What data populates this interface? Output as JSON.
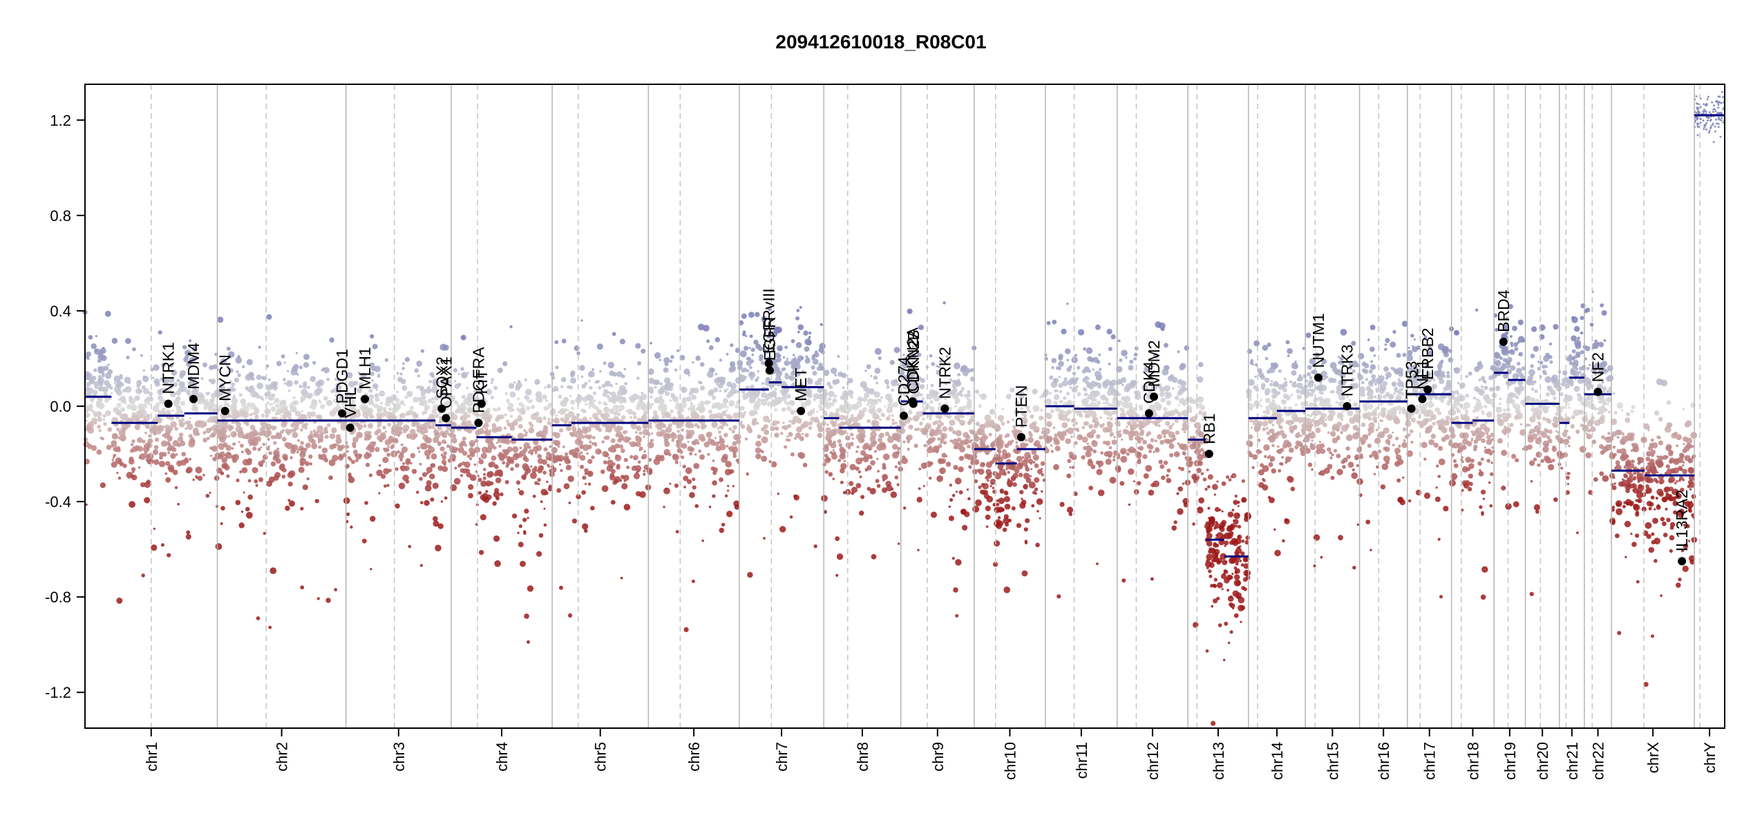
{
  "chart_data": {
    "type": "scatter",
    "title": "209412610018_R08C01",
    "ylim": [
      -1.35,
      1.35
    ],
    "yticks": [
      -1.2,
      -0.8,
      -0.4,
      0.0,
      0.4,
      0.8,
      1.2
    ],
    "ytick_labels": [
      "-1.2",
      "-0.8",
      "-0.4",
      "0.0",
      "0.4",
      "0.8",
      "1.2"
    ],
    "color_scale": {
      "high": "#7b7fb5",
      "mid": "#d9d9d9",
      "low": "#9c1a1a",
      "segment": "#000080",
      "gene": "#000000"
    },
    "chromosomes": [
      {
        "name": "chr1",
        "size": 249,
        "centromere": 0.5
      },
      {
        "name": "chr2",
        "size": 242,
        "centromere": 0.38
      },
      {
        "name": "chr3",
        "size": 198,
        "centromere": 0.46
      },
      {
        "name": "chr4",
        "size": 190,
        "centromere": 0.26
      },
      {
        "name": "chr5",
        "size": 181,
        "centromere": 0.27
      },
      {
        "name": "chr6",
        "size": 171,
        "centromere": 0.35
      },
      {
        "name": "chr7",
        "size": 159,
        "centromere": 0.38
      },
      {
        "name": "chr8",
        "size": 145,
        "centromere": 0.31
      },
      {
        "name": "chr9",
        "size": 138,
        "centromere": 0.36
      },
      {
        "name": "chr10",
        "size": 134,
        "centromere": 0.3
      },
      {
        "name": "chr11",
        "size": 135,
        "centromere": 0.4
      },
      {
        "name": "chr12",
        "size": 133,
        "centromere": 0.27
      },
      {
        "name": "chr13",
        "size": 114,
        "centromere": 0.15
      },
      {
        "name": "chr14",
        "size": 107,
        "centromere": 0.16
      },
      {
        "name": "chr15",
        "size": 102,
        "centromere": 0.18
      },
      {
        "name": "chr16",
        "size": 90,
        "centromere": 0.4
      },
      {
        "name": "chr17",
        "size": 83,
        "centromere": 0.29
      },
      {
        "name": "chr18",
        "size": 80,
        "centromere": 0.23
      },
      {
        "name": "chr19",
        "size": 59,
        "centromere": 0.45
      },
      {
        "name": "chr20",
        "size": 64,
        "centromere": 0.44
      },
      {
        "name": "chr21",
        "size": 47,
        "centromere": 0.26
      },
      {
        "name": "chr22",
        "size": 51,
        "centromere": 0.29
      },
      {
        "name": "chrX",
        "size": 156,
        "centromere": 0.39
      },
      {
        "name": "chrY",
        "size": 57,
        "centromere": 0.18
      }
    ],
    "segments": [
      {
        "chr": "chr1",
        "start": 0.0,
        "end": 0.2,
        "value": 0.04
      },
      {
        "chr": "chr1",
        "start": 0.2,
        "end": 0.55,
        "value": -0.07
      },
      {
        "chr": "chr1",
        "start": 0.55,
        "end": 0.75,
        "value": -0.04
      },
      {
        "chr": "chr1",
        "start": 0.75,
        "end": 1.0,
        "value": -0.03
      },
      {
        "chr": "chr2",
        "start": 0.0,
        "end": 1.0,
        "value": -0.06
      },
      {
        "chr": "chr3",
        "start": 0.0,
        "end": 0.85,
        "value": -0.06
      },
      {
        "chr": "chr3",
        "start": 0.85,
        "end": 1.0,
        "value": -0.08
      },
      {
        "chr": "chr4",
        "start": 0.0,
        "end": 0.25,
        "value": -0.09
      },
      {
        "chr": "chr4",
        "start": 0.25,
        "end": 0.6,
        "value": -0.13
      },
      {
        "chr": "chr4",
        "start": 0.6,
        "end": 1.0,
        "value": -0.14
      },
      {
        "chr": "chr5",
        "start": 0.0,
        "end": 0.2,
        "value": -0.08
      },
      {
        "chr": "chr5",
        "start": 0.2,
        "end": 1.0,
        "value": -0.07
      },
      {
        "chr": "chr6",
        "start": 0.0,
        "end": 1.0,
        "value": -0.06
      },
      {
        "chr": "chr7",
        "start": 0.0,
        "end": 0.35,
        "value": 0.07
      },
      {
        "chr": "chr7",
        "start": 0.35,
        "end": 0.5,
        "value": 0.1
      },
      {
        "chr": "chr7",
        "start": 0.5,
        "end": 1.0,
        "value": 0.08
      },
      {
        "chr": "chr8",
        "start": 0.0,
        "end": 0.2,
        "value": -0.05
      },
      {
        "chr": "chr8",
        "start": 0.2,
        "end": 1.0,
        "value": -0.09
      },
      {
        "chr": "chr9",
        "start": 0.0,
        "end": 0.3,
        "value": 0.02
      },
      {
        "chr": "chr9",
        "start": 0.3,
        "end": 1.0,
        "value": -0.03
      },
      {
        "chr": "chr10",
        "start": 0.0,
        "end": 0.3,
        "value": -0.18
      },
      {
        "chr": "chr10",
        "start": 0.3,
        "end": 0.6,
        "value": -0.24
      },
      {
        "chr": "chr10",
        "start": 0.6,
        "end": 1.0,
        "value": -0.18
      },
      {
        "chr": "chr11",
        "start": 0.0,
        "end": 0.4,
        "value": 0.0
      },
      {
        "chr": "chr11",
        "start": 0.4,
        "end": 1.0,
        "value": -0.01
      },
      {
        "chr": "chr12",
        "start": 0.0,
        "end": 1.0,
        "value": -0.05
      },
      {
        "chr": "chr13",
        "start": 0.0,
        "end": 0.3,
        "value": -0.14
      },
      {
        "chr": "chr13",
        "start": 0.3,
        "end": 0.6,
        "value": -0.56
      },
      {
        "chr": "chr13",
        "start": 0.6,
        "end": 1.0,
        "value": -0.63
      },
      {
        "chr": "chr14",
        "start": 0.0,
        "end": 0.5,
        "value": -0.05
      },
      {
        "chr": "chr14",
        "start": 0.5,
        "end": 1.0,
        "value": -0.02
      },
      {
        "chr": "chr15",
        "start": 0.0,
        "end": 1.0,
        "value": -0.01
      },
      {
        "chr": "chr16",
        "start": 0.0,
        "end": 1.0,
        "value": 0.02
      },
      {
        "chr": "chr17",
        "start": 0.0,
        "end": 1.0,
        "value": 0.05
      },
      {
        "chr": "chr18",
        "start": 0.0,
        "end": 0.5,
        "value": -0.07
      },
      {
        "chr": "chr18",
        "start": 0.5,
        "end": 1.0,
        "value": -0.06
      },
      {
        "chr": "chr19",
        "start": 0.0,
        "end": 0.45,
        "value": 0.14
      },
      {
        "chr": "chr19",
        "start": 0.45,
        "end": 1.0,
        "value": 0.11
      },
      {
        "chr": "chr20",
        "start": 0.0,
        "end": 1.0,
        "value": 0.01
      },
      {
        "chr": "chr21",
        "start": 0.0,
        "end": 0.4,
        "value": -0.07
      },
      {
        "chr": "chr21",
        "start": 0.4,
        "end": 1.0,
        "value": 0.12
      },
      {
        "chr": "chr22",
        "start": 0.0,
        "end": 1.0,
        "value": 0.05
      },
      {
        "chr": "chrX",
        "start": 0.0,
        "end": 0.4,
        "value": -0.27
      },
      {
        "chr": "chrX",
        "start": 0.4,
        "end": 1.0,
        "value": -0.29
      },
      {
        "chr": "chrY",
        "start": 0.0,
        "end": 1.0,
        "value": 1.22
      }
    ],
    "genes": [
      {
        "name": "NTRK1",
        "chr": "chr1",
        "pos": 0.63,
        "value": 0.01
      },
      {
        "name": "MDM4",
        "chr": "chr1",
        "pos": 0.82,
        "value": 0.03
      },
      {
        "name": "MYCN",
        "chr": "chr2",
        "pos": 0.06,
        "value": -0.02
      },
      {
        "name": "PDGD1",
        "chr": "chr2",
        "pos": 0.97,
        "value": -0.03
      },
      {
        "name": "VHL",
        "chr": "chr3",
        "pos": 0.04,
        "value": -0.09
      },
      {
        "name": "MLH1",
        "chr": "chr3",
        "pos": 0.18,
        "value": 0.03
      },
      {
        "name": "SOX2",
        "chr": "chr3",
        "pos": 0.91,
        "value": -0.01
      },
      {
        "name": "OPAX1",
        "chr": "chr3",
        "pos": 0.95,
        "value": -0.05
      },
      {
        "name": "PDGFRA",
        "chr": "chr4",
        "pos": 0.27,
        "value": -0.07
      },
      {
        "name": "KIT",
        "chr": "chr4",
        "pos": 0.3,
        "value": 0.01
      },
      {
        "name": "EGFRvIII",
        "chr": "chr7",
        "pos": 0.35,
        "value": 0.18
      },
      {
        "name": "EGFR",
        "chr": "chr7",
        "pos": 0.36,
        "value": 0.15
      },
      {
        "name": "MET",
        "chr": "chr7",
        "pos": 0.73,
        "value": -0.02
      },
      {
        "name": "CD274",
        "chr": "chr9",
        "pos": 0.04,
        "value": -0.04
      },
      {
        "name": "CDKN2A",
        "chr": "chr9",
        "pos": 0.16,
        "value": 0.02
      },
      {
        "name": "CDKN2B",
        "chr": "chr9",
        "pos": 0.17,
        "value": 0.01
      },
      {
        "name": "NTRK2",
        "chr": "chr9",
        "pos": 0.6,
        "value": -0.01
      },
      {
        "name": "PTEN",
        "chr": "chr10",
        "pos": 0.66,
        "value": -0.13
      },
      {
        "name": "CDK4",
        "chr": "chr12",
        "pos": 0.45,
        "value": -0.03
      },
      {
        "name": "MDM2",
        "chr": "chr12",
        "pos": 0.52,
        "value": 0.04
      },
      {
        "name": "RB1",
        "chr": "chr13",
        "pos": 0.35,
        "value": -0.2
      },
      {
        "name": "NUTM1",
        "chr": "chr15",
        "pos": 0.24,
        "value": 0.12
      },
      {
        "name": "NTRK3",
        "chr": "chr15",
        "pos": 0.77,
        "value": 0.0
      },
      {
        "name": "TP53",
        "chr": "chr17",
        "pos": 0.09,
        "value": -0.01
      },
      {
        "name": "NF1",
        "chr": "chr17",
        "pos": 0.34,
        "value": 0.03
      },
      {
        "name": "ERBB2",
        "chr": "chr17",
        "pos": 0.46,
        "value": 0.07
      },
      {
        "name": "BRD4",
        "chr": "chr19",
        "pos": 0.3,
        "value": 0.27
      },
      {
        "name": "NF2",
        "chr": "chr22",
        "pos": 0.5,
        "value": 0.06
      },
      {
        "name": "IL13RA2",
        "chr": "chrX",
        "pos": 0.85,
        "value": -0.65
      }
    ],
    "xlabel": "",
    "ylabel": "",
    "grid": "vertical chromosome boundaries (solid) and centromeres (dashed)"
  }
}
